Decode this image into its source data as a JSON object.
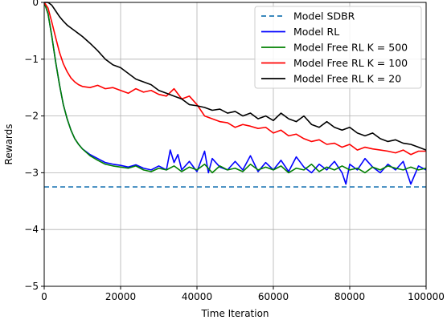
{
  "chart_data": {
    "type": "line",
    "title": "",
    "xlabel": "Time Iteration",
    "ylabel": "Rewards",
    "xlim": [
      0,
      100000
    ],
    "ylim": [
      -5,
      0
    ],
    "xticks": [
      0,
      20000,
      40000,
      60000,
      80000,
      100000
    ],
    "xtick_labels": [
      "0",
      "20000",
      "40000",
      "60000",
      "80000",
      "100000"
    ],
    "yticks": [
      0,
      -1,
      -2,
      -3,
      -4,
      -5
    ],
    "ytick_labels": [
      "0",
      "−1",
      "−2",
      "−3",
      "−4",
      "−5"
    ],
    "grid": true,
    "legend_position": "top-right",
    "series": [
      {
        "name": "Model SDBR",
        "color": "#1f77b4",
        "style": "dashed",
        "x": [
          0,
          100000
        ],
        "y": [
          -3.25,
          -3.25
        ]
      },
      {
        "name": "Model RL",
        "color": "#0000ff",
        "style": "solid",
        "x": [
          0,
          1000,
          2000,
          3000,
          4000,
          5000,
          6000,
          7000,
          8000,
          9000,
          10000,
          12000,
          14000,
          16000,
          18000,
          20000,
          22000,
          24000,
          26000,
          28000,
          30000,
          32000,
          33000,
          34000,
          35000,
          36000,
          38000,
          40000,
          42000,
          43000,
          44000,
          46000,
          48000,
          50000,
          52000,
          54000,
          56000,
          58000,
          60000,
          62000,
          64000,
          66000,
          68000,
          70000,
          72000,
          74000,
          76000,
          78000,
          79000,
          80000,
          82000,
          84000,
          86000,
          88000,
          90000,
          92000,
          94000,
          96000,
          98000,
          100000
        ],
        "y": [
          0,
          -0.2,
          -0.6,
          -1.05,
          -1.45,
          -1.8,
          -2.05,
          -2.25,
          -2.4,
          -2.5,
          -2.58,
          -2.68,
          -2.75,
          -2.82,
          -2.85,
          -2.87,
          -2.9,
          -2.86,
          -2.92,
          -2.95,
          -2.88,
          -2.95,
          -2.6,
          -2.82,
          -2.68,
          -2.95,
          -2.8,
          -2.98,
          -2.62,
          -3.0,
          -2.75,
          -2.9,
          -2.95,
          -2.8,
          -2.95,
          -2.7,
          -2.98,
          -2.82,
          -2.95,
          -2.78,
          -2.98,
          -2.72,
          -2.9,
          -3.0,
          -2.85,
          -2.95,
          -2.8,
          -3.0,
          -3.2,
          -2.85,
          -2.95,
          -2.75,
          -2.9,
          -3.0,
          -2.85,
          -2.95,
          -2.8,
          -3.2,
          -2.88,
          -2.95
        ]
      },
      {
        "name": "Model Free RL K = 500",
        "color": "#008000",
        "style": "solid",
        "x": [
          0,
          1000,
          2000,
          3000,
          4000,
          5000,
          6000,
          7000,
          8000,
          9000,
          10000,
          12000,
          14000,
          16000,
          18000,
          20000,
          22000,
          24000,
          26000,
          28000,
          30000,
          32000,
          34000,
          36000,
          38000,
          40000,
          42000,
          44000,
          46000,
          48000,
          50000,
          52000,
          54000,
          56000,
          58000,
          60000,
          62000,
          64000,
          66000,
          68000,
          70000,
          72000,
          74000,
          76000,
          78000,
          80000,
          82000,
          84000,
          86000,
          88000,
          90000,
          92000,
          94000,
          96000,
          98000,
          100000
        ],
        "y": [
          0,
          -0.2,
          -0.6,
          -1.05,
          -1.45,
          -1.8,
          -2.05,
          -2.25,
          -2.4,
          -2.5,
          -2.58,
          -2.7,
          -2.78,
          -2.85,
          -2.88,
          -2.9,
          -2.92,
          -2.88,
          -2.95,
          -2.98,
          -2.92,
          -2.95,
          -2.88,
          -2.98,
          -2.9,
          -2.95,
          -2.85,
          -3.0,
          -2.88,
          -2.95,
          -2.92,
          -2.98,
          -2.85,
          -2.95,
          -2.9,
          -2.95,
          -2.88,
          -3.0,
          -2.92,
          -2.95,
          -2.85,
          -2.98,
          -2.9,
          -2.95,
          -2.88,
          -2.95,
          -2.92,
          -3.0,
          -2.9,
          -2.95,
          -2.88,
          -2.92,
          -2.95,
          -2.9,
          -2.95,
          -2.92
        ]
      },
      {
        "name": "Model Free RL K = 100",
        "color": "#ff0000",
        "style": "solid",
        "x": [
          0,
          1000,
          2000,
          3000,
          4000,
          5000,
          6000,
          7000,
          8000,
          9000,
          10000,
          12000,
          14000,
          16000,
          18000,
          20000,
          22000,
          24000,
          26000,
          28000,
          30000,
          32000,
          34000,
          36000,
          38000,
          40000,
          42000,
          44000,
          46000,
          48000,
          50000,
          52000,
          54000,
          56000,
          58000,
          60000,
          62000,
          64000,
          66000,
          68000,
          70000,
          72000,
          74000,
          76000,
          78000,
          80000,
          82000,
          84000,
          86000,
          88000,
          90000,
          92000,
          94000,
          96000,
          98000,
          100000
        ],
        "y": [
          0,
          -0.1,
          -0.35,
          -0.62,
          -0.88,
          -1.08,
          -1.22,
          -1.33,
          -1.4,
          -1.45,
          -1.48,
          -1.5,
          -1.46,
          -1.52,
          -1.5,
          -1.55,
          -1.6,
          -1.52,
          -1.58,
          -1.55,
          -1.62,
          -1.65,
          -1.52,
          -1.7,
          -1.65,
          -1.8,
          -2.0,
          -2.05,
          -2.1,
          -2.12,
          -2.2,
          -2.15,
          -2.18,
          -2.22,
          -2.2,
          -2.3,
          -2.25,
          -2.35,
          -2.32,
          -2.4,
          -2.45,
          -2.42,
          -2.5,
          -2.48,
          -2.55,
          -2.5,
          -2.6,
          -2.55,
          -2.58,
          -2.6,
          -2.62,
          -2.65,
          -2.6,
          -2.68,
          -2.62,
          -2.62
        ]
      },
      {
        "name": "Model Free RL K = 20",
        "color": "#000000",
        "style": "solid",
        "x": [
          0,
          1000,
          2000,
          3000,
          4000,
          5000,
          6000,
          7000,
          8000,
          9000,
          10000,
          12000,
          14000,
          16000,
          18000,
          20000,
          22000,
          24000,
          26000,
          28000,
          30000,
          32000,
          34000,
          36000,
          38000,
          40000,
          42000,
          44000,
          46000,
          48000,
          50000,
          52000,
          54000,
          56000,
          58000,
          60000,
          62000,
          64000,
          66000,
          68000,
          70000,
          72000,
          74000,
          76000,
          78000,
          80000,
          82000,
          84000,
          86000,
          88000,
          90000,
          92000,
          94000,
          96000,
          98000,
          100000
        ],
        "y": [
          0,
          0,
          -0.05,
          -0.15,
          -0.25,
          -0.33,
          -0.4,
          -0.45,
          -0.5,
          -0.55,
          -0.6,
          -0.72,
          -0.85,
          -1.0,
          -1.1,
          -1.15,
          -1.25,
          -1.35,
          -1.4,
          -1.45,
          -1.55,
          -1.6,
          -1.65,
          -1.7,
          -1.8,
          -1.82,
          -1.85,
          -1.9,
          -1.88,
          -1.95,
          -1.92,
          -2.0,
          -1.95,
          -2.05,
          -2.0,
          -2.08,
          -1.95,
          -2.05,
          -2.1,
          -2.0,
          -2.15,
          -2.2,
          -2.1,
          -2.2,
          -2.25,
          -2.2,
          -2.3,
          -2.35,
          -2.3,
          -2.4,
          -2.45,
          -2.42,
          -2.48,
          -2.5,
          -2.55,
          -2.6
        ]
      }
    ]
  }
}
